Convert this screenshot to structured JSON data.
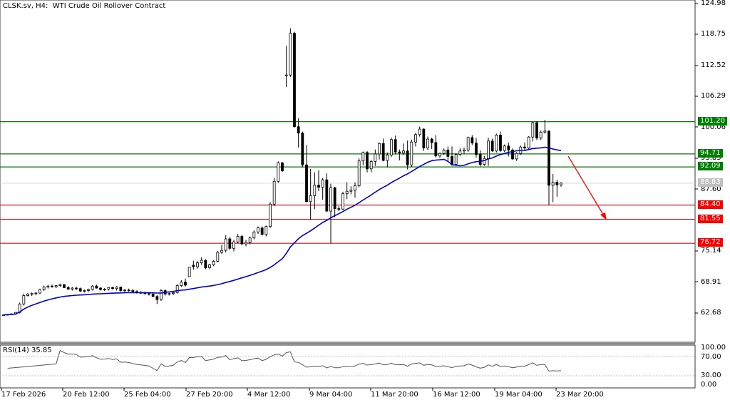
{
  "header": {
    "title": "CLSK.sv, H4:  WTI Crude Oil Rollover Contract"
  },
  "rsi": {
    "label": "RSI(14) 35.85",
    "axis": [
      "100.00",
      "70.00",
      "30.00",
      "0.00"
    ]
  },
  "price_axis": {
    "ticks": [
      "124.98",
      "118.75",
      "112.52",
      "106.29",
      "100.06",
      "93.83",
      "87.60",
      "75.14",
      "68.91",
      "62.68"
    ]
  },
  "levels": [
    {
      "value": "101.20",
      "color": "#008000",
      "kind": "resistance"
    },
    {
      "value": "94.71",
      "color": "#008000",
      "kind": "resistance"
    },
    {
      "value": "92.09",
      "color": "#008000",
      "kind": "resistance"
    },
    {
      "value": "84.40",
      "color": "#ff0000",
      "kind": "support"
    },
    {
      "value": "81.55",
      "color": "#ff0000",
      "kind": "support"
    },
    {
      "value": "76.72",
      "color": "#ff0000",
      "kind": "support"
    }
  ],
  "current_price": {
    "value": "88.83",
    "color": "#c0c0c0"
  },
  "time_axis": [
    "17 Feb 2026",
    "20 Feb 12:00",
    "25 Feb 04:00",
    "27 Feb 20:00",
    "4 Mar 12:00",
    "9 Mar 04:00",
    "11 Mar 20:00",
    "16 Mar 12:00",
    "19 Mar 04:00",
    "23 Mar 20:00"
  ],
  "colors": {
    "ma_line": "#0000cc",
    "support": "#ff0000",
    "resistance": "#008000",
    "arrow": "#ff0000",
    "candle": "#000000",
    "rsi_line": "#555555"
  },
  "chart_data": {
    "type": "candlestick",
    "title": "CLSK.sv, H4: WTI Crude Oil Rollover Contract",
    "xlabel": "",
    "ylabel": "Price",
    "ylim": [
      62.68,
      124.98
    ],
    "grid": false,
    "legend": "none",
    "x_tick_labels": [
      "17 Feb 2026",
      "20 Feb 12:00",
      "25 Feb 04:00",
      "27 Feb 20:00",
      "4 Mar 12:00",
      "9 Mar 04:00",
      "11 Mar 20:00",
      "16 Mar 12:00",
      "19 Mar 04:00",
      "23 Mar 20:00"
    ],
    "y_tick_labels": [
      "124.98",
      "118.75",
      "112.52",
      "106.29",
      "100.06",
      "93.83",
      "87.60",
      "75.14",
      "68.91",
      "62.68"
    ],
    "horizontal_levels": {
      "resistance": [
        101.2,
        94.71,
        92.09
      ],
      "support": [
        84.4,
        81.55,
        76.72
      ]
    },
    "current_price": 88.83,
    "annotation": "Red arrow projecting decline from ~94.5 toward ~81.5",
    "ohlc": [
      [
        62.2,
        62.4,
        62.1,
        62.3
      ],
      [
        62.3,
        62.5,
        62.2,
        62.4
      ],
      [
        62.4,
        62.6,
        62.3,
        62.5
      ],
      [
        62.5,
        62.9,
        62.3,
        62.8
      ],
      [
        62.8,
        64.8,
        62.6,
        64.5
      ],
      [
        64.5,
        66.6,
        64.2,
        66.2
      ],
      [
        66.2,
        66.7,
        66.0,
        66.5
      ],
      [
        66.5,
        66.8,
        66.1,
        66.6
      ],
      [
        66.6,
        66.9,
        66.3,
        66.7
      ],
      [
        66.7,
        67.6,
        66.5,
        67.4
      ],
      [
        67.4,
        68.2,
        67.1,
        67.9
      ],
      [
        67.9,
        68.3,
        67.6,
        68.1
      ],
      [
        68.1,
        68.4,
        67.8,
        68.0
      ],
      [
        68.0,
        68.3,
        67.7,
        68.2
      ],
      [
        68.2,
        68.6,
        67.9,
        68.4
      ],
      [
        68.4,
        68.5,
        67.7,
        67.8
      ],
      [
        67.8,
        68.1,
        67.3,
        67.5
      ],
      [
        67.5,
        67.9,
        67.2,
        67.7
      ],
      [
        67.7,
        68.0,
        67.3,
        67.6
      ],
      [
        67.6,
        67.8,
        66.9,
        67.1
      ],
      [
        67.1,
        67.4,
        66.8,
        67.2
      ],
      [
        67.2,
        67.6,
        66.9,
        67.4
      ],
      [
        67.4,
        68.3,
        67.2,
        68.1
      ],
      [
        68.1,
        68.4,
        67.6,
        67.7
      ],
      [
        67.7,
        67.9,
        67.2,
        67.4
      ],
      [
        67.4,
        67.7,
        67.1,
        67.5
      ],
      [
        67.5,
        67.9,
        67.2,
        67.8
      ],
      [
        67.8,
        68.0,
        67.4,
        67.6
      ],
      [
        67.6,
        68.1,
        67.2,
        67.9
      ],
      [
        67.9,
        68.0,
        67.0,
        67.2
      ],
      [
        67.2,
        67.5,
        66.9,
        67.3
      ],
      [
        67.3,
        67.6,
        67.0,
        67.2
      ],
      [
        67.2,
        67.5,
        66.8,
        67.0
      ],
      [
        67.0,
        67.3,
        66.6,
        66.8
      ],
      [
        66.8,
        67.1,
        66.5,
        66.7
      ],
      [
        66.7,
        67.0,
        66.4,
        66.6
      ],
      [
        66.6,
        66.9,
        66.2,
        66.5
      ],
      [
        66.5,
        66.7,
        65.9,
        66.0
      ],
      [
        66.0,
        66.3,
        64.5,
        65.4
      ],
      [
        65.4,
        67.5,
        65.1,
        67.2
      ],
      [
        67.2,
        67.4,
        66.2,
        66.5
      ],
      [
        66.5,
        66.8,
        66.2,
        66.6
      ],
      [
        66.6,
        67.1,
        66.3,
        66.8
      ],
      [
        66.8,
        68.5,
        66.6,
        68.2
      ],
      [
        68.2,
        69.3,
        67.9,
        68.9
      ],
      [
        68.9,
        69.6,
        68.0,
        68.3
      ],
      [
        70.0,
        70.4,
        71.8,
        71.9
      ],
      [
        72.3,
        73.2,
        71.4,
        72.0
      ],
      [
        72.0,
        73.2,
        71.6,
        72.8
      ],
      [
        72.8,
        73.9,
        72.4,
        73.3
      ],
      [
        73.3,
        73.5,
        71.5,
        71.8
      ],
      [
        71.8,
        72.6,
        71.5,
        72.4
      ],
      [
        72.4,
        73.3,
        72.1,
        73.1
      ],
      [
        73.1,
        75.2,
        72.9,
        74.9
      ],
      [
        74.9,
        76.4,
        74.6,
        75.3
      ],
      [
        75.3,
        78.3,
        74.9,
        77.6
      ],
      [
        77.6,
        78.0,
        75.4,
        75.7
      ],
      [
        75.7,
        77.4,
        75.1,
        77.0
      ],
      [
        77.0,
        78.6,
        76.7,
        78.1
      ],
      [
        78.1,
        78.4,
        76.3,
        76.6
      ],
      [
        76.6,
        77.4,
        76.1,
        76.9
      ],
      [
        76.9,
        78.1,
        76.5,
        77.8
      ],
      [
        77.8,
        79.3,
        77.5,
        79.0
      ],
      [
        79.0,
        80.1,
        78.6,
        79.8
      ],
      [
        79.8,
        80.1,
        78.3,
        78.5
      ],
      [
        78.5,
        80.3,
        78.1,
        80.1
      ],
      [
        80.1,
        85.0,
        79.8,
        84.6
      ],
      [
        84.6,
        89.9,
        84.2,
        89.2
      ],
      [
        89.2,
        93.2,
        88.9,
        92.9
      ],
      [
        92.9,
        93.1,
        91.1,
        91.3
      ],
      [
        110.5,
        116.5,
        108.2,
        110.6
      ],
      [
        110.6,
        120.0,
        110.2,
        119.0
      ],
      [
        119.0,
        119.3,
        100.0,
        100.2
      ],
      [
        100.2,
        101.9,
        96.0,
        98.9
      ],
      [
        98.9,
        99.2,
        92.0,
        92.5
      ],
      [
        92.5,
        96.5,
        85.0,
        85.1
      ],
      [
        85.1,
        91.7,
        81.5,
        86.3
      ],
      [
        86.3,
        91.0,
        83.6,
        88.4
      ],
      [
        88.4,
        91.4,
        87.2,
        88.0
      ],
      [
        88.0,
        89.9,
        85.5,
        89.5
      ],
      [
        89.5,
        90.8,
        83.0,
        83.2
      ],
      [
        83.2,
        88.7,
        76.7,
        87.9
      ],
      [
        87.9,
        88.1,
        82.0,
        83.7
      ],
      [
        83.7,
        84.2,
        83.2,
        83.6
      ],
      [
        83.6,
        87.1,
        83.4,
        86.7
      ],
      [
        86.7,
        89.0,
        85.6,
        87.2
      ],
      [
        87.2,
        88.2,
        86.6,
        87.4
      ],
      [
        87.4,
        89.0,
        85.9,
        88.3
      ],
      [
        88.3,
        93.8,
        88.0,
        93.3
      ],
      [
        93.3,
        95.2,
        92.4,
        95.0
      ],
      [
        95.0,
        95.3,
        91.0,
        91.7
      ],
      [
        91.7,
        93.5,
        91.0,
        93.2
      ],
      [
        93.2,
        95.6,
        92.3,
        94.7
      ],
      [
        94.7,
        97.0,
        93.6,
        96.8
      ],
      [
        96.8,
        97.8,
        93.2,
        93.4
      ],
      [
        93.4,
        95.0,
        92.0,
        94.5
      ],
      [
        94.5,
        98.0,
        94.1,
        97.6
      ],
      [
        97.6,
        98.4,
        94.6,
        95.1
      ],
      [
        95.1,
        95.6,
        93.4,
        94.9
      ],
      [
        94.9,
        96.8,
        94.5,
        95.3
      ],
      [
        95.3,
        97.4,
        91.6,
        92.5
      ],
      [
        92.5,
        97.6,
        92.1,
        97.1
      ],
      [
        97.1,
        99.0,
        96.2,
        98.6
      ],
      [
        98.6,
        100.2,
        98.2,
        99.7
      ],
      [
        99.7,
        99.9,
        95.3,
        95.9
      ],
      [
        95.9,
        98.2,
        95.5,
        97.7
      ],
      [
        97.7,
        98.0,
        95.7,
        97.0
      ],
      [
        97.0,
        98.5,
        94.0,
        94.3
      ],
      [
        94.3,
        95.0,
        93.9,
        94.8
      ],
      [
        94.8,
        95.8,
        94.5,
        95.5
      ],
      [
        95.5,
        96.2,
        93.3,
        94.2
      ],
      [
        94.2,
        96.2,
        92.3,
        92.6
      ],
      [
        92.6,
        94.9,
        92.4,
        94.6
      ],
      [
        94.6,
        95.9,
        94.3,
        95.3
      ],
      [
        95.3,
        96.0,
        94.7,
        95.5
      ],
      [
        95.5,
        98.2,
        95.1,
        98.0
      ],
      [
        98.0,
        98.5,
        96.5,
        96.9
      ],
      [
        96.9,
        97.9,
        94.0,
        94.6
      ],
      [
        94.6,
        95.4,
        92.2,
        92.6
      ],
      [
        92.6,
        94.3,
        92.3,
        93.8
      ],
      [
        93.8,
        98.0,
        92.3,
        97.3
      ],
      [
        97.3,
        97.8,
        95.1,
        95.3
      ],
      [
        95.3,
        98.8,
        95.0,
        98.5
      ],
      [
        98.5,
        99.2,
        95.1,
        95.4
      ],
      [
        95.4,
        96.6,
        95.1,
        96.3
      ],
      [
        96.3,
        97.0,
        94.2,
        95.5
      ],
      [
        95.5,
        95.8,
        93.5,
        93.7
      ],
      [
        93.7,
        95.1,
        93.3,
        94.8
      ],
      [
        94.8,
        96.4,
        94.5,
        96.1
      ],
      [
        96.1,
        97.0,
        95.3,
        95.9
      ],
      [
        95.9,
        98.3,
        95.5,
        98.1
      ],
      [
        98.1,
        101.2,
        97.2,
        101.0
      ],
      [
        101.0,
        101.3,
        97.5,
        97.9
      ],
      [
        97.9,
        99.4,
        97.5,
        99.1
      ],
      [
        99.1,
        101.6,
        98.8,
        99.3
      ],
      [
        99.3,
        99.5,
        84.4,
        88.4
      ],
      [
        88.4,
        90.7,
        85.0,
        89.0
      ],
      [
        89.0,
        89.5,
        86.1,
        88.5
      ],
      [
        88.5,
        89.0,
        88.1,
        88.83
      ]
    ],
    "ma_series_name": "Moving average (blue)",
    "indicators": [
      {
        "type": "line",
        "name": "RSI(14)",
        "last_value": 35.85,
        "ylim": [
          0,
          100
        ],
        "levels": [
          70,
          30
        ]
      }
    ]
  }
}
